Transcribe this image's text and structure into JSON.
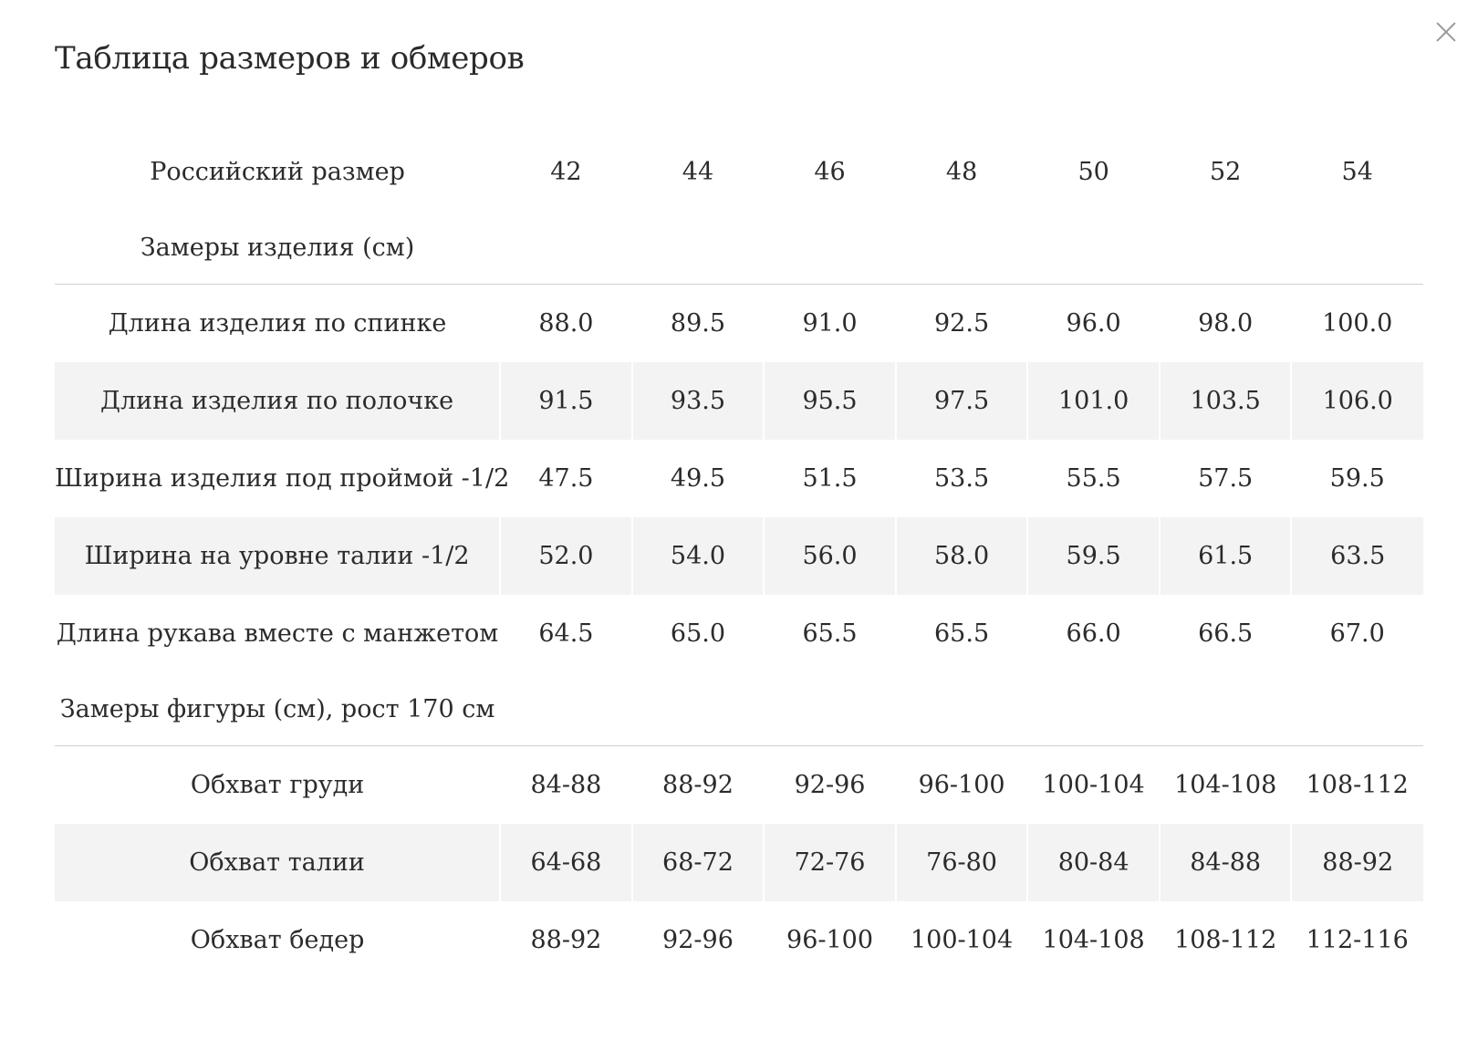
{
  "modal": {
    "title": "Таблица размеров и обмеров",
    "close_icon": "close-icon"
  },
  "table": {
    "header_label": "Российский размер",
    "sizes": [
      "42",
      "44",
      "46",
      "48",
      "50",
      "52",
      "54"
    ],
    "sections": [
      {
        "title": "Замеры изделия (см)",
        "rows": [
          {
            "label": "Длина изделия по спинке",
            "values": [
              "88.0",
              "89.5",
              "91.0",
              "92.5",
              "96.0",
              "98.0",
              "100.0"
            ]
          },
          {
            "label": "Длина изделия по полочке",
            "values": [
              "91.5",
              "93.5",
              "95.5",
              "97.5",
              "101.0",
              "103.5",
              "106.0"
            ]
          },
          {
            "label": "Ширина изделия под проймой -1/2",
            "values": [
              "47.5",
              "49.5",
              "51.5",
              "53.5",
              "55.5",
              "57.5",
              "59.5"
            ]
          },
          {
            "label": "Ширина на уровне талии -1/2",
            "values": [
              "52.0",
              "54.0",
              "56.0",
              "58.0",
              "59.5",
              "61.5",
              "63.5"
            ]
          },
          {
            "label": "Длина рукава вместе с манжетом",
            "values": [
              "64.5",
              "65.0",
              "65.5",
              "65.5",
              "66.0",
              "66.5",
              "67.0"
            ]
          }
        ]
      },
      {
        "title": "Замеры фигуры (см), рост 170 см",
        "rows": [
          {
            "label": "Обхват груди",
            "values": [
              "84-88",
              "88-92",
              "92-96",
              "96-100",
              "100-104",
              "104-108",
              "108-112"
            ]
          },
          {
            "label": "Обхват талии",
            "values": [
              "64-68",
              "68-72",
              "72-76",
              "76-80",
              "80-84",
              "84-88",
              "88-92"
            ]
          },
          {
            "label": "Обхват бедер",
            "values": [
              "88-92",
              "92-96",
              "96-100",
              "100-104",
              "104-108",
              "108-112",
              "112-116"
            ]
          }
        ]
      }
    ]
  }
}
